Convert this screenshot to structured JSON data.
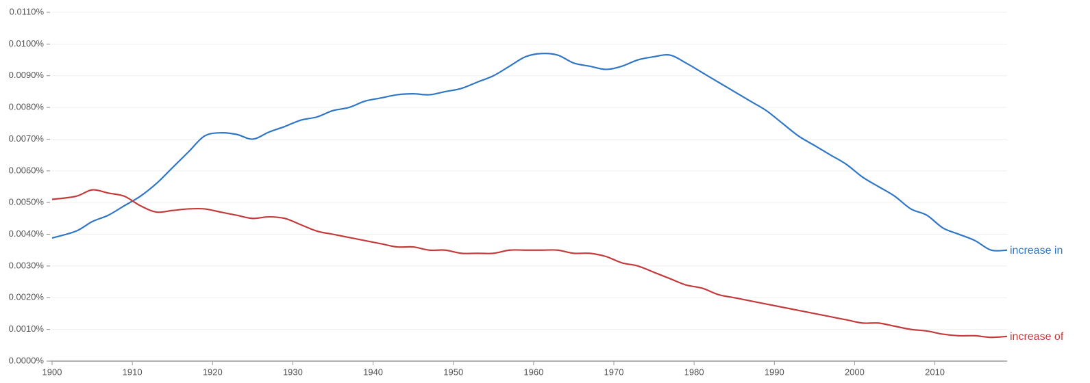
{
  "chart_data": {
    "type": "line",
    "x": [
      1900,
      1903,
      1905,
      1907,
      1909,
      1911,
      1913,
      1915,
      1917,
      1919,
      1921,
      1923,
      1925,
      1927,
      1929,
      1931,
      1933,
      1935,
      1937,
      1939,
      1941,
      1943,
      1945,
      1947,
      1949,
      1951,
      1953,
      1955,
      1957,
      1959,
      1961,
      1963,
      1965,
      1967,
      1969,
      1971,
      1973,
      1975,
      1977,
      1979,
      1981,
      1983,
      1985,
      1987,
      1989,
      1991,
      1993,
      1995,
      1997,
      1999,
      2001,
      2003,
      2005,
      2007,
      2009,
      2011,
      2013,
      2015,
      2017,
      2019
    ],
    "series": [
      {
        "name": "increase in",
        "color": "#2f76c6",
        "values": [
          0.00388,
          0.0041,
          0.0044,
          0.0046,
          0.0049,
          0.0052,
          0.0056,
          0.0061,
          0.0066,
          0.0071,
          0.0072,
          0.00715,
          0.007,
          0.00722,
          0.0074,
          0.0076,
          0.0077,
          0.0079,
          0.008,
          0.0082,
          0.0083,
          0.0084,
          0.00843,
          0.0084,
          0.0085,
          0.0086,
          0.0088,
          0.009,
          0.0093,
          0.0096,
          0.0097,
          0.00965,
          0.0094,
          0.0093,
          0.0092,
          0.0093,
          0.0095,
          0.0096,
          0.00965,
          0.0094,
          0.0091,
          0.0088,
          0.0085,
          0.0082,
          0.0079,
          0.0075,
          0.0071,
          0.0068,
          0.0065,
          0.0062,
          0.0058,
          0.0055,
          0.0052,
          0.0048,
          0.0046,
          0.0042,
          0.004,
          0.0038,
          0.0035,
          0.0035
        ]
      },
      {
        "name": "increase of",
        "color": "#c43a3a",
        "values": [
          0.0051,
          0.0052,
          0.0054,
          0.0053,
          0.0052,
          0.0049,
          0.0047,
          0.00475,
          0.0048,
          0.0048,
          0.0047,
          0.0046,
          0.0045,
          0.00455,
          0.0045,
          0.0043,
          0.0041,
          0.004,
          0.0039,
          0.0038,
          0.0037,
          0.0036,
          0.0036,
          0.0035,
          0.0035,
          0.0034,
          0.0034,
          0.0034,
          0.0035,
          0.0035,
          0.0035,
          0.0035,
          0.0034,
          0.0034,
          0.0033,
          0.0031,
          0.003,
          0.0028,
          0.0026,
          0.0024,
          0.0023,
          0.0021,
          0.002,
          0.0019,
          0.0018,
          0.0017,
          0.0016,
          0.0015,
          0.0014,
          0.0013,
          0.0012,
          0.0012,
          0.0011,
          0.001,
          0.00095,
          0.00085,
          0.0008,
          0.0008,
          0.00075,
          0.00078
        ]
      }
    ],
    "xlim": [
      1900,
      2019
    ],
    "xticks": [
      1900,
      1910,
      1920,
      1930,
      1940,
      1950,
      1960,
      1970,
      1980,
      1990,
      2000,
      2010
    ],
    "ylim": [
      0,
      0.011
    ],
    "yticks": [
      {
        "value": 0,
        "label": "0.0000%"
      },
      {
        "value": 0.001,
        "label": "0.0010%"
      },
      {
        "value": 0.002,
        "label": "0.0020%"
      },
      {
        "value": 0.003,
        "label": "0.0030%"
      },
      {
        "value": 0.004,
        "label": "0.0040%"
      },
      {
        "value": 0.005,
        "label": "0.0050%"
      },
      {
        "value": 0.006,
        "label": "0.0060%"
      },
      {
        "value": 0.007,
        "label": "0.0070%"
      },
      {
        "value": 0.008,
        "label": "0.0080%"
      },
      {
        "value": 0.009,
        "label": "0.0090%"
      },
      {
        "value": 0.01,
        "label": "0.0100%"
      },
      {
        "value": 0.011,
        "label": "0.0110%"
      }
    ],
    "grid": true
  }
}
